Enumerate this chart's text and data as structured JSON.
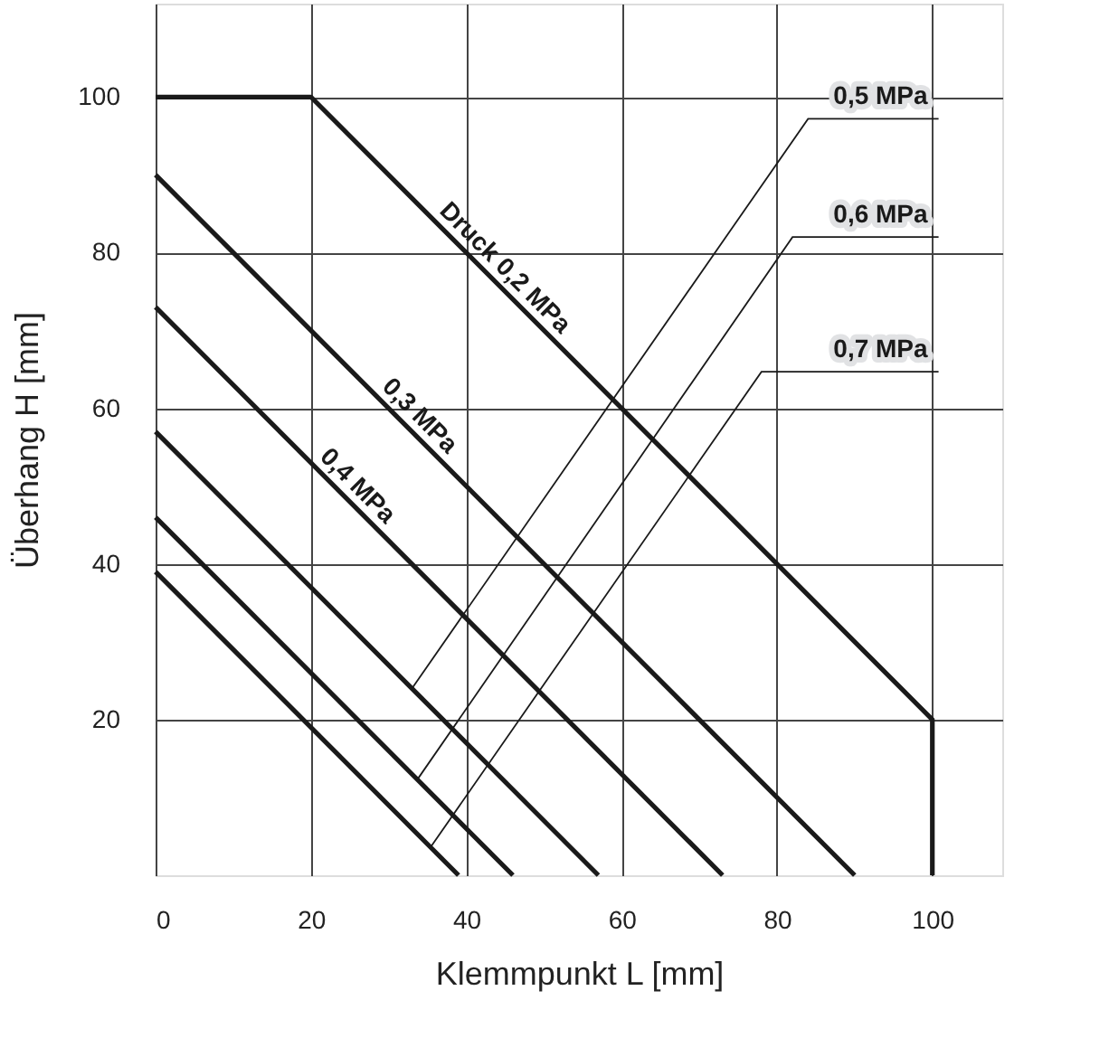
{
  "chart_data": {
    "type": "line",
    "xlabel": "Klemmpunkt L [mm]",
    "ylabel": "Überhang H [mm]",
    "xlim": [
      0,
      109
    ],
    "ylim": [
      0,
      112
    ],
    "xticks": [
      0,
      20,
      40,
      60,
      80,
      100
    ],
    "yticks": [
      20,
      40,
      60,
      80,
      100
    ],
    "grid": true,
    "marker": "none",
    "line_style": "solid",
    "series": [
      {
        "name": "Druck 0,2 MPa",
        "color": "#1a1a1a",
        "x": [
          0,
          20,
          100,
          100
        ],
        "values": [
          100,
          100,
          20,
          0
        ]
      },
      {
        "name": "0,3 MPa",
        "color": "#1a1a1a",
        "x": [
          0,
          90
        ],
        "values": [
          90,
          0
        ]
      },
      {
        "name": "0,4 MPa",
        "color": "#1a1a1a",
        "x": [
          0,
          73
        ],
        "values": [
          73,
          0
        ]
      },
      {
        "name": "0,5 MPa",
        "color": "#1a1a1a",
        "x": [
          0,
          57
        ],
        "values": [
          57,
          0
        ]
      },
      {
        "name": "0,6 MPa",
        "color": "#1a1a1a",
        "x": [
          0,
          46
        ],
        "values": [
          46,
          0
        ]
      },
      {
        "name": "0,7 MPa",
        "color": "#1a1a1a",
        "x": [
          0,
          39
        ],
        "values": [
          39,
          0
        ]
      }
    ]
  }
}
